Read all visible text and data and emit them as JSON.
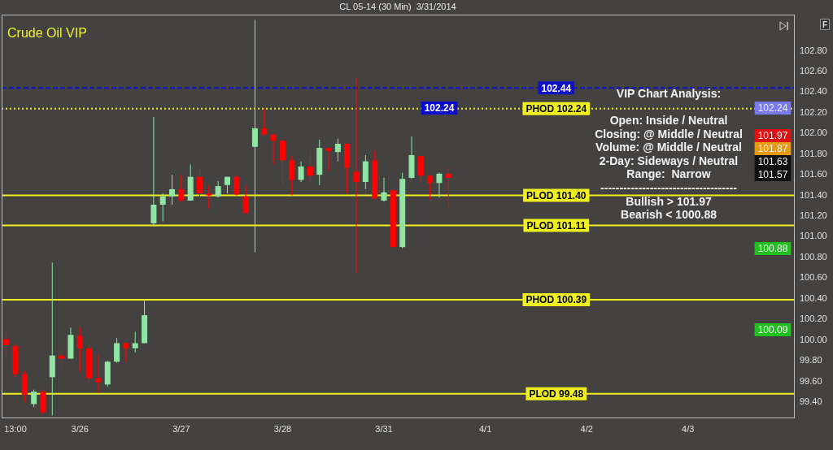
{
  "chart_data": {
    "type": "candlestick",
    "title": "CL 05-14 (30 Min)  3/31/2014",
    "subtitle": "Crude Oil VIP",
    "categories": [
      null,
      "13:00",
      null,
      null,
      null,
      null,
      null,
      null,
      "3/26",
      null,
      null,
      null,
      null,
      null,
      null,
      null,
      null,
      null,
      null,
      "3/27",
      null,
      null,
      null,
      null,
      null,
      null,
      null,
      null,
      null,
      null,
      "3/28",
      null,
      null,
      null,
      null,
      null,
      null,
      null,
      null,
      null,
      null,
      "3/31",
      null,
      null,
      null,
      null,
      null,
      null,
      null,
      null,
      null,
      null,
      "4/1",
      null,
      null,
      null,
      null,
      null,
      null,
      null,
      null,
      null,
      null,
      "4/2",
      null,
      null,
      null,
      null,
      null,
      null,
      null,
      null,
      null,
      null,
      "4/3",
      null,
      null,
      null,
      null,
      null,
      null,
      null,
      null,
      null,
      null,
      null
    ],
    "ohlc": [
      [
        100.01,
        100.08,
        99.85,
        99.95
      ],
      [
        99.94,
        99.97,
        99.64,
        99.67
      ],
      [
        99.67,
        99.7,
        99.4,
        99.47
      ],
      [
        99.38,
        99.52,
        99.35,
        99.5
      ],
      [
        99.5,
        99.52,
        99.28,
        99.3
      ],
      [
        99.64,
        100.75,
        99.27,
        99.85
      ],
      [
        99.85,
        99.9,
        99.72,
        99.82
      ],
      [
        99.82,
        100.12,
        99.82,
        100.05
      ],
      [
        100.04,
        100.12,
        99.69,
        99.92
      ],
      [
        99.92,
        99.97,
        99.59,
        99.63
      ],
      [
        99.63,
        99.86,
        99.49,
        99.59
      ],
      [
        99.57,
        99.8,
        99.55,
        99.79
      ],
      [
        99.79,
        100.02,
        99.78,
        99.97
      ],
      [
        99.97,
        99.98,
        99.79,
        99.92
      ],
      [
        99.92,
        100.08,
        99.88,
        99.97
      ],
      [
        99.97,
        100.38,
        99.97,
        100.24
      ],
      [
        101.13,
        102.16,
        101.1,
        101.31
      ],
      [
        101.31,
        101.42,
        101.15,
        101.39
      ],
      [
        101.39,
        101.6,
        101.31,
        101.46
      ],
      [
        101.46,
        101.6,
        101.34,
        101.35
      ],
      [
        101.35,
        101.7,
        101.35,
        101.58
      ],
      [
        101.58,
        101.66,
        101.37,
        101.42
      ],
      [
        101.42,
        101.5,
        101.27,
        101.4
      ],
      [
        101.39,
        101.54,
        101.38,
        101.49
      ],
      [
        101.5,
        101.58,
        101.42,
        101.58
      ],
      [
        101.58,
        101.59,
        101.4,
        101.41
      ],
      [
        101.39,
        101.5,
        101.22,
        101.23
      ],
      [
        101.87,
        103.1,
        100.85,
        102.05
      ],
      [
        102.05,
        102.24,
        101.98,
        101.99
      ],
      [
        101.99,
        102.0,
        101.7,
        101.93
      ],
      [
        101.93,
        101.93,
        101.5,
        101.74
      ],
      [
        101.74,
        101.78,
        101.4,
        101.55
      ],
      [
        101.55,
        101.73,
        101.53,
        101.68
      ],
      [
        101.68,
        101.82,
        101.53,
        101.59
      ],
      [
        101.6,
        101.94,
        101.5,
        101.86
      ],
      [
        101.86,
        101.86,
        101.64,
        101.83
      ],
      [
        101.82,
        101.95,
        101.73,
        101.9
      ],
      [
        101.9,
        101.9,
        101.42,
        101.67
      ],
      [
        101.63,
        102.54,
        100.65,
        101.53
      ],
      [
        101.53,
        101.79,
        101.46,
        101.73
      ],
      [
        101.74,
        101.83,
        101.37,
        101.37
      ],
      [
        101.35,
        101.57,
        101.34,
        101.43
      ],
      [
        101.45,
        101.45,
        100.89,
        100.9
      ],
      [
        100.9,
        101.62,
        100.89,
        101.56
      ],
      [
        101.57,
        101.97,
        101.56,
        101.79
      ],
      [
        101.78,
        101.79,
        101.52,
        101.59
      ],
      [
        101.59,
        101.59,
        101.36,
        101.52
      ],
      [
        101.52,
        101.62,
        101.38,
        101.61
      ],
      [
        101.61,
        101.67,
        101.29,
        101.57
      ],
      null,
      null,
      null,
      null,
      null,
      null,
      null,
      null,
      null,
      null,
      null,
      null,
      null,
      null,
      null,
      null,
      null,
      null,
      null,
      null,
      null,
      null,
      null,
      null,
      null,
      null,
      null,
      null,
      null,
      null,
      null,
      null,
      null,
      null,
      null,
      null,
      null
    ],
    "colors": [
      "#ff0000",
      "#ff0000",
      "#ff0000",
      "#90e4a4",
      "#ff0000",
      "#90e4a4",
      "#ff0000",
      "#90e4a4",
      "#ff0000",
      "#ff0000",
      "#ff0000",
      "#90e4a4",
      "#90e4a4",
      "#ff0000",
      "#90e4a4",
      "#90e4a4",
      "#90e4a4",
      "#90e4a4",
      "#90e4a4",
      "#ff0000",
      "#90e4a4",
      "#ff0000",
      "#ff0000",
      "#90e4a4",
      "#90e4a4",
      "#ff0000",
      "#ff0000",
      "#90e4a4",
      "#ff0000",
      "#ff0000",
      "#ff0000",
      "#ff0000",
      "#90e4a4",
      "#ff0000",
      "#90e4a4",
      "#ff0000",
      "#90e4a4",
      "#ff0000",
      "#ff0000",
      "#90e4a4",
      "#ff0000",
      "#90e4a4",
      "#ff0000",
      "#90e4a4",
      "#90e4a4",
      "#ff0000",
      "#ff0000",
      "#90e4a4",
      "#ff0000",
      null,
      null,
      null,
      null,
      null,
      null,
      null,
      null,
      null,
      null,
      null,
      null,
      null,
      null,
      null,
      null,
      null,
      null,
      null,
      null,
      null,
      null,
      null,
      null,
      null,
      null,
      null,
      null,
      null,
      null,
      null,
      null,
      null,
      null,
      null,
      null,
      null
    ],
    "ylim": [
      99.25,
      103.15
    ],
    "yticks": [
      {
        "value": 99.4,
        "label": "99.40"
      },
      {
        "value": 99.6,
        "label": "99.60"
      },
      {
        "value": 99.8,
        "label": "99.80"
      },
      {
        "value": 100.0,
        "label": "100.00"
      },
      {
        "value": 100.2,
        "label": "100.20"
      },
      {
        "value": 100.4,
        "label": "100.40"
      },
      {
        "value": 100.6,
        "label": "100.60"
      },
      {
        "value": 100.8,
        "label": "100.80"
      },
      {
        "value": 101.0,
        "label": "101.00"
      },
      {
        "value": 101.2,
        "label": "101.20"
      },
      {
        "value": 101.4,
        "label": "101.40"
      },
      {
        "value": 101.6,
        "label": "101.60"
      },
      {
        "value": 101.8,
        "label": "101.80"
      },
      {
        "value": 102.0,
        "label": "102.00"
      },
      {
        "value": 102.2,
        "label": "102.20"
      },
      {
        "value": 102.4,
        "label": "102.40"
      },
      {
        "value": 102.6,
        "label": "102.60"
      },
      {
        "value": 102.8,
        "label": "102.80"
      }
    ],
    "grid": false,
    "legend": false,
    "ref_lines": [
      {
        "axis": "y",
        "value": 102.44,
        "label": "102.44",
        "color": "#1010c8",
        "line_style": "dashed"
      },
      {
        "axis": "y",
        "value": 102.24,
        "label": "PHOD 102.24",
        "color": "#f0f020",
        "line_style": "dotted"
      },
      {
        "axis": "y",
        "value": 101.4,
        "label": "PLOD 101.40",
        "color": "#f0f020",
        "line_style": "solid"
      },
      {
        "axis": "y",
        "value": 101.11,
        "label": "PLOD 101.11",
        "color": "#f0f020",
        "line_style": "solid"
      },
      {
        "axis": "y",
        "value": 100.39,
        "label": "PHOD 100.39",
        "color": "#f0f020",
        "line_style": "solid"
      },
      {
        "axis": "y",
        "value": 99.48,
        "label": "PLOD 99.48",
        "color": "#f0f020",
        "line_style": "solid"
      }
    ],
    "annotations": [
      "F",
      "VIP Chart Analysis:",
      "Open: Inside / Neutral",
      "Closing: @ Middle / Neutral",
      "Volume: @ Middle / Neutral",
      "2-Day: Sideways / Neutral",
      "Range:  Narrow",
      "------------------------------------",
      "Bullish > 101.97",
      "Bearish < 1000.88",
      "102.24",
      "102.24",
      "101.97",
      "101.87",
      "101.63",
      "101.57",
      "100.88",
      "100.09"
    ]
  }
}
